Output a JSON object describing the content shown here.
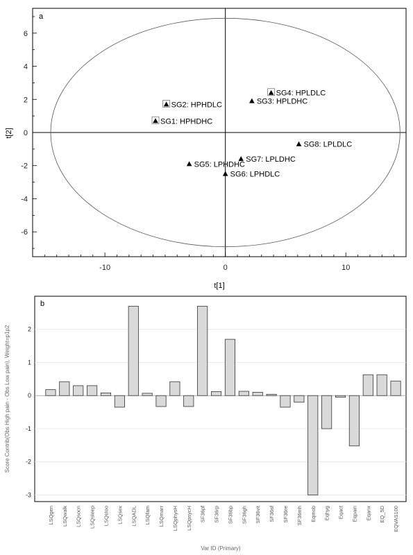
{
  "chart_data": [
    {
      "type": "scatter",
      "panel_label": "a",
      "xlabel": "t[1]",
      "ylabel": "t[2]",
      "xlim": [
        -16,
        15
      ],
      "ylim": [
        -7.5,
        7.5
      ],
      "xticks": [
        -10,
        0,
        10
      ],
      "yticks": [
        -6,
        -4,
        -2,
        0,
        2,
        4,
        6
      ],
      "ellipse": {
        "cx": 0,
        "cy": 0,
        "rx": 14.5,
        "ry": 6.9
      },
      "points": [
        {
          "label": "SG4: HPLDLC",
          "x": 3.8,
          "y": 2.4,
          "boxed": true
        },
        {
          "label": "SG3: HPLDHC",
          "x": 2.2,
          "y": 1.9,
          "boxed": false
        },
        {
          "label": "SG2: HPHDLC",
          "x": -4.9,
          "y": 1.7,
          "boxed": true
        },
        {
          "label": "SG1: HPHDHC",
          "x": -5.8,
          "y": 0.7,
          "boxed": true
        },
        {
          "label": "SG8: LPLDLC",
          "x": 6.1,
          "y": -0.7,
          "boxed": false
        },
        {
          "label": "SG7: LPLDHC",
          "x": 1.3,
          "y": -1.6,
          "boxed": false
        },
        {
          "label": "SG5: LPHDHC",
          "x": -3.0,
          "y": -1.9,
          "boxed": false
        },
        {
          "label": "SG6: LPHDLC",
          "x": 0.0,
          "y": -2.5,
          "boxed": false
        }
      ]
    },
    {
      "type": "bar",
      "panel_label": "b",
      "xlabel": "Var ID (Primary)",
      "ylabel": "Score Contrib(Obs High pain - Obs Low pain), Weight=p1p2",
      "ylim": [
        -3.2,
        3.0
      ],
      "yticks": [
        -3,
        -2,
        -1,
        0,
        1,
        2
      ],
      "categories": [
        "LSQgen",
        "LSQwalk",
        "LSQsocn",
        "LSQsleep",
        "LSQstoo",
        "LSQsex",
        "LSQADL",
        "LSQfam",
        "LSQmarr",
        "LSQphysH",
        "LSQpsycH",
        "SF36pf",
        "SF36rp",
        "SF36bp",
        "SF36gh",
        "SF36vit",
        "SF36sf",
        "SF36re",
        "SF36mh",
        "Eqmob",
        "Eqhyg",
        "Eqact",
        "Eqpain",
        "Eqanx",
        "EQ_5D",
        "EQVAS100"
      ],
      "values": [
        0.18,
        0.42,
        0.3,
        0.3,
        0.08,
        -0.35,
        2.7,
        0.07,
        -0.33,
        0.42,
        -0.33,
        2.7,
        0.12,
        1.7,
        0.13,
        0.1,
        0.04,
        -0.35,
        -0.2,
        -3.0,
        -1.0,
        -0.05,
        -1.52,
        0.63,
        0.63,
        0.44
      ]
    }
  ]
}
